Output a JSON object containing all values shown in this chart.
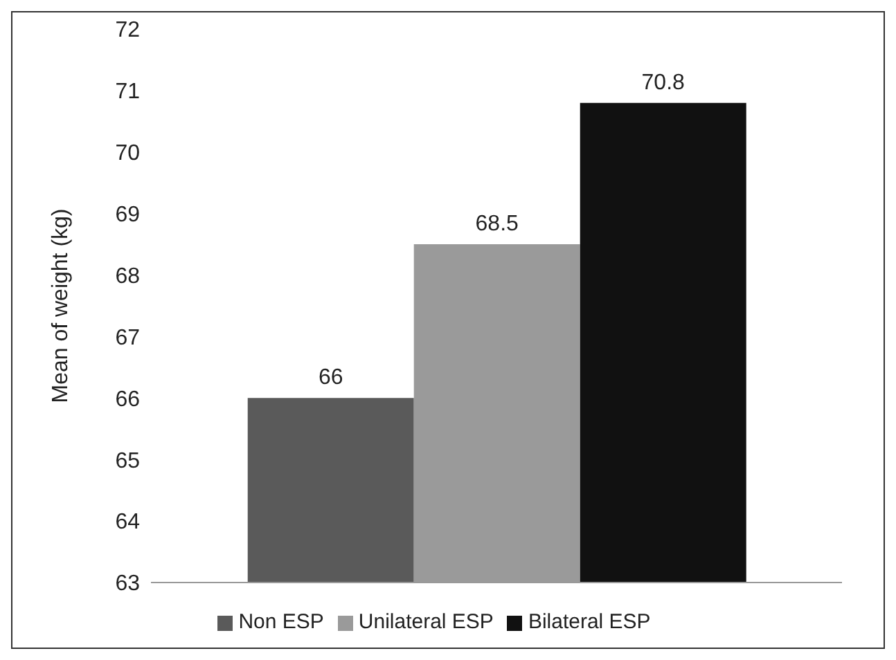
{
  "chart_data": {
    "type": "bar",
    "ylabel": "Mean of weight (kg)",
    "categories": [
      null
    ],
    "series": [
      {
        "name": "Non ESP",
        "color": "#5a5a5a",
        "values": [
          66
        ]
      },
      {
        "name": "Unilateral ESP",
        "color": "#9a9a9a",
        "values": [
          68.5
        ]
      },
      {
        "name": "Bilateral ESP",
        "color": "#111111",
        "values": [
          70.8
        ]
      }
    ],
    "ylim": [
      63,
      72
    ],
    "yticks": [
      63,
      64,
      65,
      66,
      67,
      68,
      69,
      70,
      71,
      72
    ],
    "grid": false,
    "legend": "bottom",
    "data_labels": true
  }
}
